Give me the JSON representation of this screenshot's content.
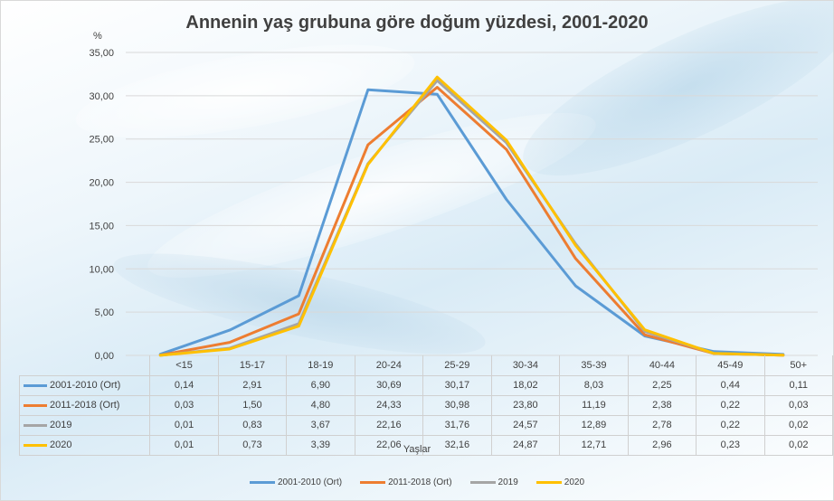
{
  "chart_data": {
    "type": "line",
    "title": "Annenin yaş grubuna göre doğum yüzdesi, 2001-2020",
    "ylabel": "%",
    "xlabel": "Yaşlar",
    "ylim": [
      0,
      35
    ],
    "yticks": [
      "0,00",
      "5,00",
      "10,00",
      "15,00",
      "20,00",
      "25,00",
      "30,00",
      "35,00"
    ],
    "grid": true,
    "legend_position": "bottom",
    "categories": [
      "<15",
      "15-17",
      "18-19",
      "20-24",
      "25-29",
      "30-34",
      "35-39",
      "40-44",
      "45-49",
      "50+"
    ],
    "series": [
      {
        "name": "2001-2010 (Ort)",
        "color": "#5b9bd5",
        "values": [
          0.14,
          2.91,
          6.9,
          30.69,
          30.17,
          18.02,
          8.03,
          2.25,
          0.44,
          0.11
        ],
        "labels": [
          "0,14",
          "2,91",
          "6,90",
          "30,69",
          "30,17",
          "18,02",
          "8,03",
          "2,25",
          "0,44",
          "0,11"
        ]
      },
      {
        "name": "2011-2018 (Ort)",
        "color": "#ed7d31",
        "values": [
          0.03,
          1.5,
          4.8,
          24.33,
          30.98,
          23.8,
          11.19,
          2.38,
          0.22,
          0.03
        ],
        "labels": [
          "0,03",
          "1,50",
          "4,80",
          "24,33",
          "30,98",
          "23,80",
          "11,19",
          "2,38",
          "0,22",
          "0,03"
        ]
      },
      {
        "name": "2019",
        "color": "#a5a5a5",
        "values": [
          0.01,
          0.83,
          3.67,
          22.16,
          31.76,
          24.57,
          12.89,
          2.78,
          0.22,
          0.02
        ],
        "labels": [
          "0,01",
          "0,83",
          "3,67",
          "22,16",
          "31,76",
          "24,57",
          "12,89",
          "2,78",
          "0,22",
          "0,02"
        ]
      },
      {
        "name": "2020",
        "color": "#ffc000",
        "values": [
          0.01,
          0.73,
          3.39,
          22.06,
          32.16,
          24.87,
          12.71,
          2.96,
          0.23,
          0.02
        ],
        "labels": [
          "0,01",
          "0,73",
          "3,39",
          "22,06",
          "32,16",
          "24,87",
          "12,71",
          "2,96",
          "0,23",
          "0,02"
        ]
      }
    ]
  }
}
